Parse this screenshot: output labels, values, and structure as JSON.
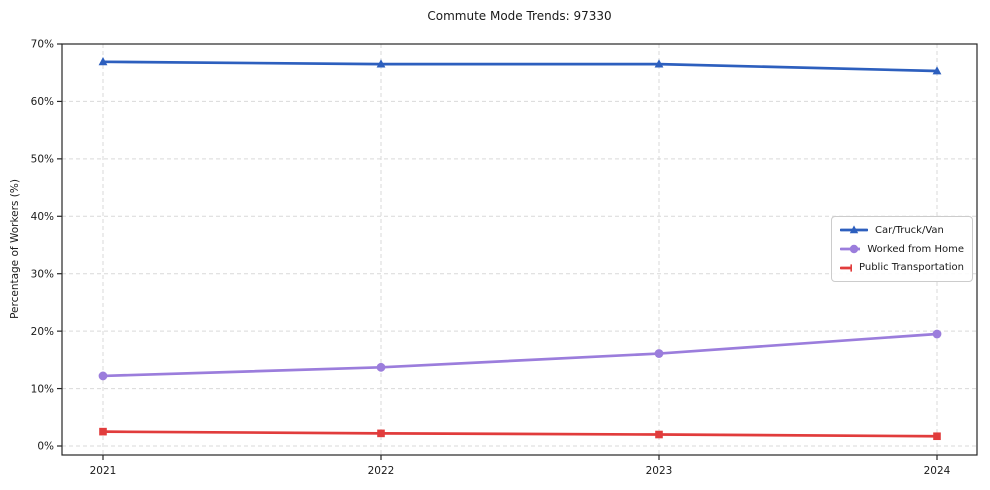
{
  "chart_data": {
    "type": "line",
    "title": "Commute Mode Trends: 97330",
    "xlabel": "",
    "ylabel": "Percentage of Workers (%)",
    "categories": [
      "2021",
      "2022",
      "2023",
      "2024"
    ],
    "series": [
      {
        "name": "Car/Truck/Van",
        "marker": "triangle",
        "color": "#2d5fbe",
        "values": [
          66.9,
          66.5,
          66.5,
          65.3
        ]
      },
      {
        "name": "Worked from Home",
        "marker": "circle",
        "color": "#9b7ddc",
        "values": [
          12.2,
          13.7,
          16.1,
          19.5
        ]
      },
      {
        "name": "Public Transportation",
        "marker": "square",
        "color": "#e13c3c",
        "values": [
          2.5,
          2.2,
          2.0,
          1.7
        ]
      }
    ],
    "ylim": [
      0,
      70
    ],
    "yticks": [
      0,
      10,
      20,
      30,
      40,
      50,
      60,
      70
    ],
    "ytick_suffix": "%",
    "grid": true,
    "grid_style": "dashed",
    "legend_position": "center-right"
  },
  "colors": {
    "background": "#ffffff",
    "grid": "#d9d9d9",
    "spine": "#262626",
    "text": "#1a1a1a",
    "legend_border": "#cccccc"
  }
}
